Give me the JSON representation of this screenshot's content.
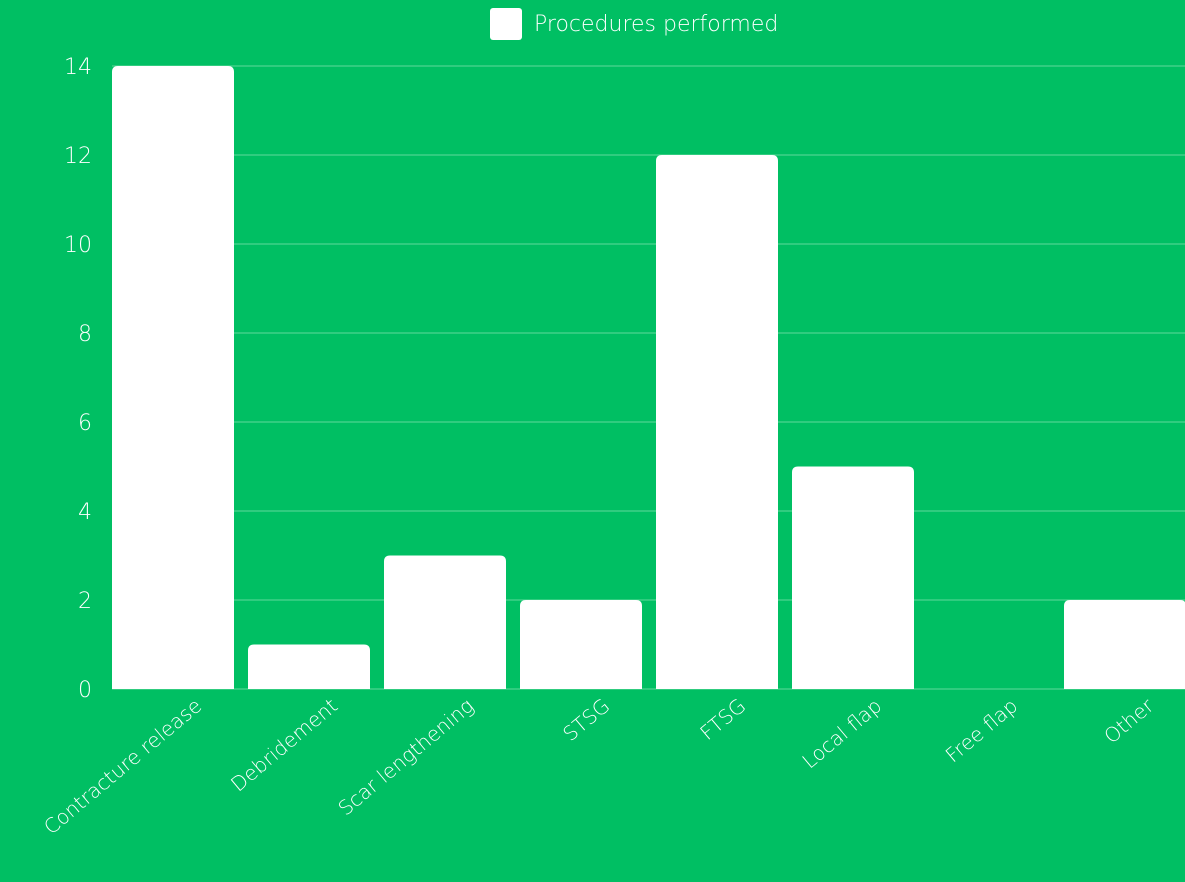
{
  "chart_data": {
    "type": "bar",
    "categories": [
      "Contracture release",
      "Debridement",
      "Scar lengthening",
      "STSG",
      "FTSG",
      "Local flap",
      "Free flap",
      "Other"
    ],
    "series": [
      {
        "name": "Procedures performed",
        "values": [
          14,
          1,
          3,
          2,
          12,
          5,
          0,
          2
        ]
      }
    ],
    "title": "",
    "xlabel": "",
    "ylabel": "",
    "ylim": [
      0,
      14
    ],
    "yticks": [
      0,
      2,
      4,
      6,
      8,
      10,
      12,
      14
    ],
    "grid": true,
    "legend_position": "top"
  },
  "colors": {
    "background": "#00bf63",
    "bar": "#ffffff",
    "text": "#ffffff",
    "grid": "#5fd99b"
  }
}
